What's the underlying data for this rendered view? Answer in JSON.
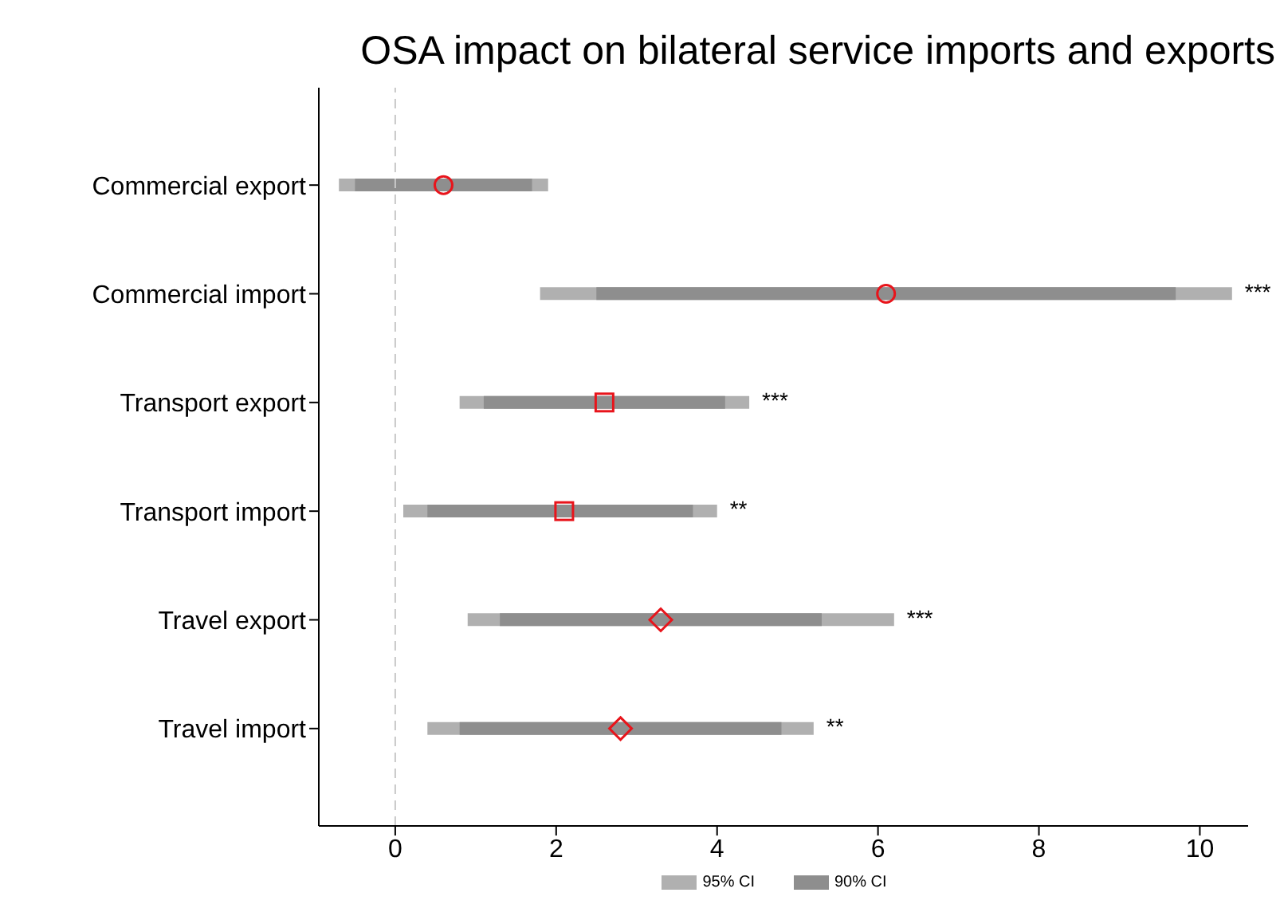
{
  "chart_data": {
    "type": "bar",
    "orientation": "horizontal",
    "title": "OSA impact on bilateral service imports and exports",
    "categories": [
      "Commercial export",
      "Commercial import",
      "Transport export",
      "Transport import",
      "Travel export",
      "Travel import"
    ],
    "series": [
      {
        "name": "95% CI",
        "color": "#b0b0b0",
        "base": [
          -0.7,
          1.8,
          0.8,
          0.1,
          0.9,
          0.4
        ],
        "values": [
          2.6,
          8.6,
          3.6,
          3.9,
          5.3,
          4.8
        ],
        "value_labels": [
          null,
          "***",
          "***",
          "**",
          "***",
          "**"
        ]
      },
      {
        "name": "90% CI",
        "color": "#8e8e8e",
        "base": [
          -0.5,
          2.5,
          1.1,
          0.4,
          1.3,
          0.8
        ],
        "values": [
          2.2,
          7.2,
          3.0,
          3.3,
          4.0,
          4.0
        ]
      },
      {
        "type": "scatter",
        "marker": "circle",
        "color": "#e8141b",
        "values": [
          0.6,
          6.1,
          null,
          null,
          null,
          null
        ]
      },
      {
        "type": "scatter",
        "marker": "square",
        "color": "#e8141b",
        "values": [
          null,
          null,
          2.6,
          2.1,
          null,
          null
        ]
      },
      {
        "type": "scatter",
        "marker": "diamond",
        "color": "#e8141b",
        "values": [
          null,
          null,
          null,
          null,
          3.3,
          2.8
        ]
      }
    ],
    "xlim": [
      -0.95,
      10.6
    ],
    "xticks": [
      0,
      2,
      4,
      6,
      8,
      10
    ],
    "ref_lines": [
      {
        "axis": "x",
        "value": 0,
        "color": "#c8c8c8",
        "line_style": "dashed"
      }
    ],
    "grid": false,
    "legend": "bottom"
  }
}
